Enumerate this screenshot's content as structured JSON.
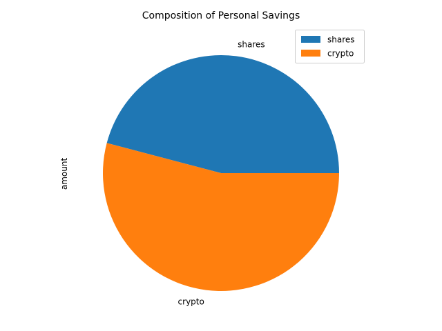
{
  "chart_data": {
    "type": "pie",
    "title": "Composition of Personal Savings",
    "ylabel": "amount",
    "categories": [
      "shares",
      "crypto"
    ],
    "values": [
      45.9,
      54.1
    ],
    "colors": [
      "#1f77b4",
      "#ff7f0e"
    ],
    "legend": {
      "placement": "top-right",
      "entries": [
        "shares",
        "crypto"
      ]
    },
    "start_angle": "0 degrees, counter-clockwise"
  }
}
